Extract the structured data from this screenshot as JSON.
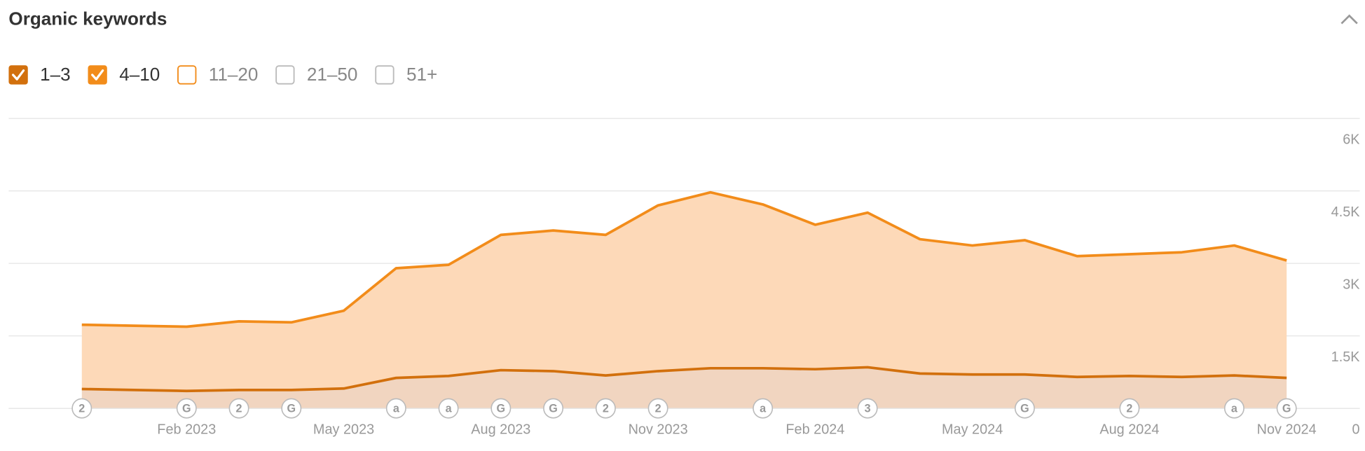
{
  "chart_data": {
    "type": "stacked-area",
    "title": "Organic keywords",
    "categories": [
      null,
      null,
      "Feb 2023",
      null,
      null,
      "May 2023",
      null,
      null,
      "Aug 2023",
      null,
      null,
      "Nov 2023",
      null,
      null,
      "Feb 2024",
      null,
      null,
      "May 2024",
      null,
      null,
      "Aug 2024",
      null,
      null,
      "Nov 2024"
    ],
    "series": [
      {
        "name": "1–3",
        "color": "#d2700d",
        "fill": "#f1d5c0",
        "checked": true,
        "values": [
          400,
          380,
          360,
          380,
          380,
          410,
          630,
          670,
          790,
          770,
          680,
          770,
          830,
          830,
          810,
          850,
          720,
          700,
          700,
          650,
          670,
          650,
          680,
          630
        ]
      },
      {
        "name": "4–10",
        "color": "#f28c1a",
        "fill": "#fdd9b8",
        "checked": true,
        "values": [
          1330,
          1330,
          1330,
          1420,
          1400,
          1610,
          2270,
          2300,
          2800,
          2910,
          2910,
          3430,
          3640,
          3390,
          2990,
          3200,
          2780,
          2670,
          2780,
          2500,
          2520,
          2580,
          2690,
          2430
        ]
      },
      {
        "name": "11–20",
        "color": "#f28c1a",
        "checked": false
      },
      {
        "name": "21–50",
        "color": "#bbbbbb",
        "checked": false
      },
      {
        "name": "51+",
        "color": "#bbbbbb",
        "checked": false
      }
    ],
    "event_markers": [
      "2",
      null,
      "G",
      "2",
      "G",
      null,
      "a",
      "a",
      "G",
      "G",
      "2",
      "2",
      null,
      "a",
      null,
      "3",
      null,
      null,
      "G",
      null,
      "2",
      null,
      "a",
      "G"
    ],
    "ylim": [
      0,
      6000
    ],
    "yticks": [
      0,
      {
        "value": 1500,
        "label": "1.5K"
      },
      {
        "value": 3000,
        "label": "3K"
      },
      {
        "value": 4500,
        "label": "4.5K"
      },
      {
        "value": 6000,
        "label": "6K"
      }
    ],
    "grid": true
  }
}
